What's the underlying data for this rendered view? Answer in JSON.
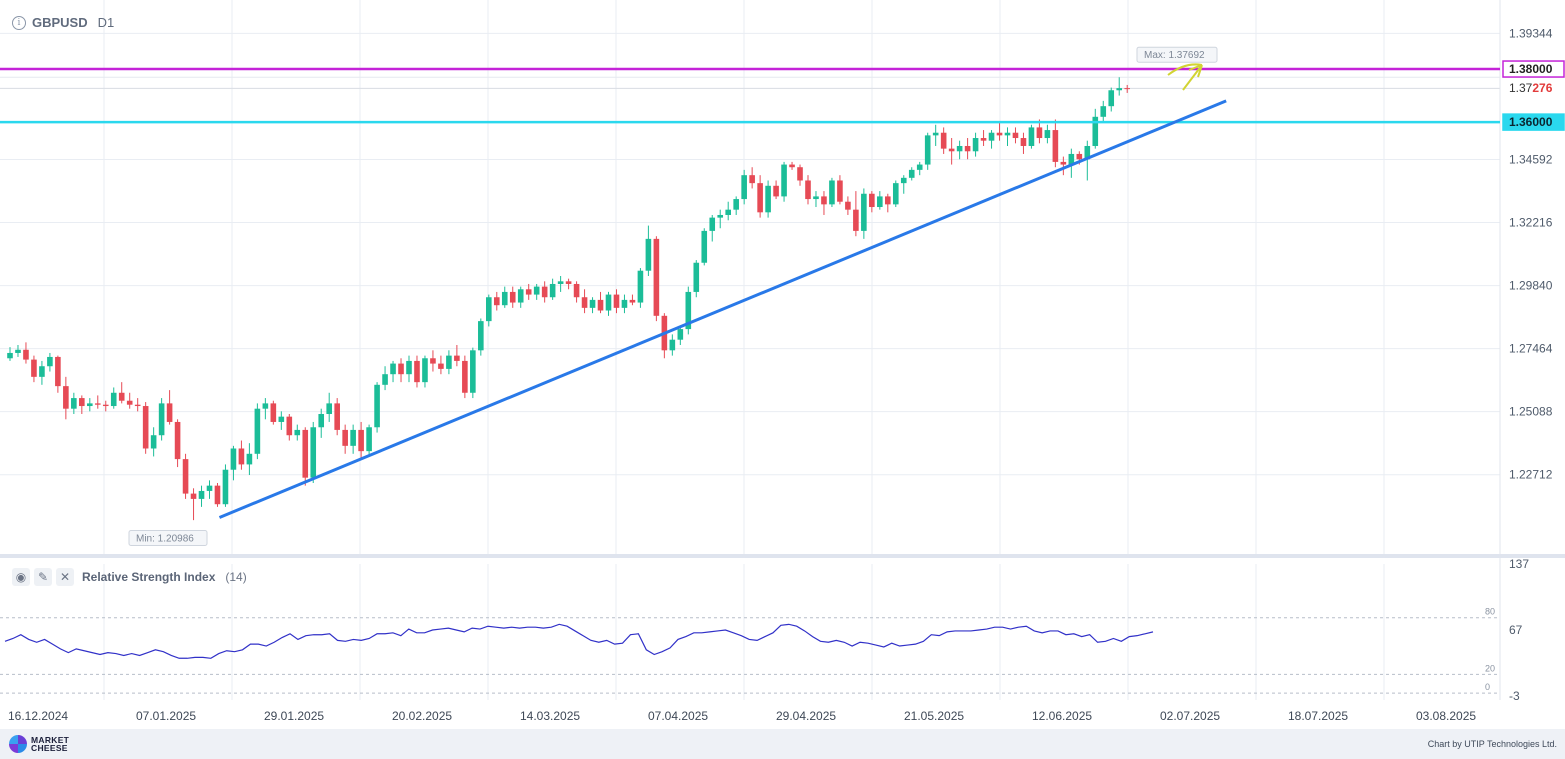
{
  "header": {
    "symbol": "GBPUSD",
    "timeframe": "D1",
    "info_icon": "info-icon"
  },
  "colors": {
    "bull": "#1bbd98",
    "bear": "#e64a55",
    "grid": "#e9edf3",
    "trendline": "#2979e8",
    "resistance": "#c423d8",
    "support": "#2ad8ee",
    "rsi": "#3131c8",
    "arrow": "#d2d433"
  },
  "price_axis": {
    "ticks": [
      "1.39344",
      "1.34592",
      "1.32216",
      "1.29840",
      "1.27464",
      "1.25088",
      "1.22712"
    ],
    "tick_values": [
      1.39344,
      1.34592,
      1.32216,
      1.2984,
      1.27464,
      1.25088,
      1.22712
    ],
    "current_price_prefix": "1.37",
    "current_price_suffix": "276",
    "current_price": 1.37276
  },
  "levels": [
    {
      "label": "1.38000",
      "value": 1.38,
      "color": "#c423d8"
    },
    {
      "label": "1.36000",
      "value": 1.36,
      "color": "#2ad8ee"
    }
  ],
  "markers": {
    "max_label": "Max: 1.37692",
    "min_label": "Min: 1.20986"
  },
  "time_axis": [
    "16.12.2024",
    "07.01.2025",
    "29.01.2025",
    "20.02.2025",
    "14.03.2025",
    "07.04.2025",
    "29.04.2025",
    "21.05.2025",
    "12.06.2025",
    "02.07.2025",
    "18.07.2025",
    "03.08.2025"
  ],
  "rsi": {
    "title": "Relative Strength Index",
    "param": "(14)",
    "axis": [
      "137",
      "67",
      "-3"
    ],
    "levels": [
      "80",
      "20",
      "0"
    ],
    "icons": [
      "eye-icon",
      "wrench-icon",
      "close-icon"
    ]
  },
  "footer": {
    "logo_text": "MARKET\nCHEESE",
    "credit": "Chart by UTIP Technologies Ltd."
  },
  "chart_data": {
    "type": "candlestick",
    "symbol": "GBPUSD",
    "timeframe": "D1",
    "ohlc": [
      [
        1.271,
        1.2752,
        1.27,
        1.273
      ],
      [
        1.273,
        1.276,
        1.2715,
        1.2742
      ],
      [
        1.2742,
        1.277,
        1.269,
        1.2705
      ],
      [
        1.2705,
        1.272,
        1.262,
        1.264
      ],
      [
        1.264,
        1.27,
        1.261,
        1.268
      ],
      [
        1.268,
        1.273,
        1.266,
        1.2715
      ],
      [
        1.2715,
        1.272,
        1.258,
        1.2605
      ],
      [
        1.2605,
        1.264,
        1.248,
        1.252
      ],
      [
        1.252,
        1.258,
        1.25,
        1.256
      ],
      [
        1.256,
        1.257,
        1.25,
        1.253
      ],
      [
        1.253,
        1.256,
        1.251,
        1.254
      ],
      [
        1.254,
        1.257,
        1.252,
        1.2535
      ],
      [
        1.2535,
        1.255,
        1.251,
        1.253
      ],
      [
        1.253,
        1.26,
        1.252,
        1.258
      ],
      [
        1.258,
        1.262,
        1.254,
        1.255
      ],
      [
        1.255,
        1.258,
        1.252,
        1.2535
      ],
      [
        1.2535,
        1.256,
        1.251,
        1.253
      ],
      [
        1.253,
        1.2545,
        1.235,
        1.237
      ],
      [
        1.237,
        1.245,
        1.234,
        1.242
      ],
      [
        1.242,
        1.256,
        1.24,
        1.254
      ],
      [
        1.254,
        1.259,
        1.246,
        1.247
      ],
      [
        1.247,
        1.248,
        1.23,
        1.233
      ],
      [
        1.233,
        1.235,
        1.218,
        1.22
      ],
      [
        1.22,
        1.222,
        1.21,
        1.218
      ],
      [
        1.218,
        1.223,
        1.215,
        1.221
      ],
      [
        1.221,
        1.225,
        1.218,
        1.223
      ],
      [
        1.223,
        1.224,
        1.215,
        1.216
      ],
      [
        1.216,
        1.231,
        1.215,
        1.229
      ],
      [
        1.229,
        1.238,
        1.225,
        1.237
      ],
      [
        1.237,
        1.24,
        1.229,
        1.231
      ],
      [
        1.231,
        1.239,
        1.227,
        1.235
      ],
      [
        1.235,
        1.254,
        1.233,
        1.252
      ],
      [
        1.252,
        1.256,
        1.248,
        1.254
      ],
      [
        1.254,
        1.255,
        1.246,
        1.247
      ],
      [
        1.247,
        1.251,
        1.244,
        1.249
      ],
      [
        1.249,
        1.25,
        1.24,
        1.242
      ],
      [
        1.242,
        1.246,
        1.24,
        1.244
      ],
      [
        1.244,
        1.245,
        1.223,
        1.226
      ],
      [
        1.226,
        1.247,
        1.224,
        1.245
      ],
      [
        1.245,
        1.252,
        1.241,
        1.25
      ],
      [
        1.25,
        1.258,
        1.247,
        1.254
      ],
      [
        1.254,
        1.256,
        1.242,
        1.244
      ],
      [
        1.244,
        1.246,
        1.235,
        1.238
      ],
      [
        1.238,
        1.246,
        1.235,
        1.244
      ],
      [
        1.244,
        1.247,
        1.233,
        1.236
      ],
      [
        1.236,
        1.246,
        1.234,
        1.245
      ],
      [
        1.245,
        1.262,
        1.243,
        1.261
      ],
      [
        1.261,
        1.268,
        1.259,
        1.265
      ],
      [
        1.265,
        1.27,
        1.262,
        1.269
      ],
      [
        1.269,
        1.271,
        1.262,
        1.265
      ],
      [
        1.265,
        1.272,
        1.262,
        1.27
      ],
      [
        1.27,
        1.272,
        1.26,
        1.262
      ],
      [
        1.262,
        1.272,
        1.26,
        1.271
      ],
      [
        1.271,
        1.274,
        1.266,
        1.269
      ],
      [
        1.269,
        1.272,
        1.265,
        1.267
      ],
      [
        1.267,
        1.274,
        1.265,
        1.272
      ],
      [
        1.272,
        1.276,
        1.268,
        1.27
      ],
      [
        1.27,
        1.272,
        1.256,
        1.258
      ],
      [
        1.258,
        1.275,
        1.256,
        1.274
      ],
      [
        1.274,
        1.286,
        1.272,
        1.285
      ],
      [
        1.285,
        1.295,
        1.283,
        1.294
      ],
      [
        1.294,
        1.296,
        1.289,
        1.291
      ],
      [
        1.291,
        1.298,
        1.29,
        1.296
      ],
      [
        1.296,
        1.298,
        1.29,
        1.292
      ],
      [
        1.292,
        1.298,
        1.29,
        1.297
      ],
      [
        1.297,
        1.299,
        1.293,
        1.295
      ],
      [
        1.295,
        1.299,
        1.293,
        1.298
      ],
      [
        1.298,
        1.3,
        1.292,
        1.294
      ],
      [
        1.294,
        1.301,
        1.293,
        1.299
      ],
      [
        1.299,
        1.302,
        1.296,
        1.3
      ],
      [
        1.3,
        1.301,
        1.297,
        1.299
      ],
      [
        1.299,
        1.3,
        1.292,
        1.294
      ],
      [
        1.294,
        1.297,
        1.288,
        1.29
      ],
      [
        1.29,
        1.294,
        1.288,
        1.293
      ],
      [
        1.293,
        1.296,
        1.288,
        1.289
      ],
      [
        1.289,
        1.296,
        1.287,
        1.295
      ],
      [
        1.295,
        1.297,
        1.288,
        1.29
      ],
      [
        1.29,
        1.295,
        1.288,
        1.293
      ],
      [
        1.293,
        1.295,
        1.291,
        1.292
      ],
      [
        1.292,
        1.305,
        1.29,
        1.304
      ],
      [
        1.304,
        1.321,
        1.302,
        1.316
      ],
      [
        1.316,
        1.317,
        1.285,
        1.287
      ],
      [
        1.287,
        1.288,
        1.271,
        1.274
      ],
      [
        1.274,
        1.28,
        1.272,
        1.278
      ],
      [
        1.278,
        1.283,
        1.276,
        1.282
      ],
      [
        1.282,
        1.298,
        1.28,
        1.296
      ],
      [
        1.296,
        1.308,
        1.294,
        1.307
      ],
      [
        1.307,
        1.32,
        1.306,
        1.319
      ],
      [
        1.319,
        1.325,
        1.315,
        1.324
      ],
      [
        1.324,
        1.327,
        1.32,
        1.325
      ],
      [
        1.325,
        1.33,
        1.323,
        1.327
      ],
      [
        1.327,
        1.332,
        1.325,
        1.331
      ],
      [
        1.331,
        1.342,
        1.329,
        1.34
      ],
      [
        1.34,
        1.343,
        1.335,
        1.337
      ],
      [
        1.337,
        1.34,
        1.324,
        1.326
      ],
      [
        1.326,
        1.338,
        1.324,
        1.336
      ],
      [
        1.336,
        1.338,
        1.331,
        1.332
      ],
      [
        1.332,
        1.345,
        1.33,
        1.344
      ],
      [
        1.344,
        1.345,
        1.342,
        1.343
      ],
      [
        1.343,
        1.344,
        1.336,
        1.338
      ],
      [
        1.338,
        1.34,
        1.329,
        1.331
      ],
      [
        1.331,
        1.334,
        1.328,
        1.332
      ],
      [
        1.332,
        1.334,
        1.325,
        1.329
      ],
      [
        1.329,
        1.339,
        1.328,
        1.338
      ],
      [
        1.338,
        1.34,
        1.329,
        1.33
      ],
      [
        1.33,
        1.332,
        1.325,
        1.327
      ],
      [
        1.327,
        1.334,
        1.317,
        1.319
      ],
      [
        1.319,
        1.335,
        1.316,
        1.333
      ],
      [
        1.333,
        1.334,
        1.326,
        1.328
      ],
      [
        1.328,
        1.334,
        1.327,
        1.332
      ],
      [
        1.332,
        1.333,
        1.326,
        1.329
      ],
      [
        1.329,
        1.338,
        1.328,
        1.337
      ],
      [
        1.337,
        1.34,
        1.333,
        1.339
      ],
      [
        1.339,
        1.343,
        1.338,
        1.342
      ],
      [
        1.342,
        1.345,
        1.34,
        1.344
      ],
      [
        1.344,
        1.356,
        1.342,
        1.355
      ],
      [
        1.355,
        1.359,
        1.351,
        1.356
      ],
      [
        1.356,
        1.358,
        1.348,
        1.35
      ],
      [
        1.35,
        1.354,
        1.344,
        1.349
      ],
      [
        1.349,
        1.353,
        1.346,
        1.351
      ],
      [
        1.351,
        1.354,
        1.346,
        1.349
      ],
      [
        1.349,
        1.356,
        1.347,
        1.354
      ],
      [
        1.354,
        1.357,
        1.351,
        1.353
      ],
      [
        1.353,
        1.357,
        1.35,
        1.356
      ],
      [
        1.356,
        1.36,
        1.353,
        1.355
      ],
      [
        1.355,
        1.358,
        1.351,
        1.356
      ],
      [
        1.356,
        1.358,
        1.352,
        1.354
      ],
      [
        1.354,
        1.356,
        1.348,
        1.351
      ],
      [
        1.351,
        1.359,
        1.35,
        1.358
      ],
      [
        1.358,
        1.361,
        1.352,
        1.354
      ],
      [
        1.354,
        1.359,
        1.352,
        1.357
      ],
      [
        1.357,
        1.361,
        1.343,
        1.345
      ],
      [
        1.345,
        1.347,
        1.34,
        1.344
      ],
      [
        1.344,
        1.35,
        1.339,
        1.348
      ],
      [
        1.348,
        1.349,
        1.344,
        1.346
      ],
      [
        1.346,
        1.353,
        1.338,
        1.351
      ],
      [
        1.351,
        1.365,
        1.35,
        1.362
      ],
      [
        1.362,
        1.368,
        1.36,
        1.366
      ],
      [
        1.366,
        1.373,
        1.364,
        1.372
      ],
      [
        1.372,
        1.3769,
        1.37,
        1.3728
      ],
      [
        1.3728,
        1.374,
        1.371,
        1.3727
      ]
    ],
    "rsi_values": [
      55,
      58,
      62,
      57,
      54,
      57,
      52,
      47,
      43,
      47,
      45,
      43,
      41,
      43,
      42,
      40,
      42,
      40,
      43,
      46,
      44,
      40,
      37,
      37,
      38,
      38,
      37,
      42,
      45,
      44,
      46,
      52,
      52,
      50,
      54,
      59,
      63,
      57,
      61,
      62,
      62,
      63,
      56,
      55,
      57,
      56,
      58,
      63,
      63,
      64,
      61,
      68,
      64,
      64,
      67,
      68,
      69,
      67,
      65,
      69,
      68,
      71,
      70,
      69,
      70,
      69,
      70,
      70,
      69,
      70,
      73,
      71,
      66,
      61,
      56,
      54,
      56,
      52,
      53,
      62,
      63,
      46,
      41,
      44,
      48,
      57,
      60,
      64,
      64,
      65,
      66,
      67,
      64,
      61,
      57,
      56,
      60,
      64,
      72,
      73,
      71,
      66,
      60,
      55,
      54,
      56,
      54,
      50,
      54,
      53,
      51,
      49,
      53,
      50,
      51,
      52,
      55,
      62,
      61,
      65,
      66,
      66,
      66,
      67,
      68,
      70,
      70,
      68,
      70,
      71,
      66,
      64,
      66,
      66,
      62,
      63,
      60,
      62,
      54,
      55,
      58,
      55,
      60,
      61,
      63,
      65
    ],
    "rsi_period": 14,
    "rsi_levels": [
      80,
      20,
      0
    ],
    "rsi_range": [
      -3,
      137
    ],
    "horizontal_levels": [
      1.38,
      1.36
    ],
    "trendline": {
      "from": {
        "date": "16.01.2025",
        "price": 1.211
      },
      "to": {
        "date": "30.06.2025",
        "price": 1.368
      }
    },
    "max": 1.37692,
    "min": 1.20986,
    "ylim": [
      1.1995,
      1.403
    ]
  }
}
